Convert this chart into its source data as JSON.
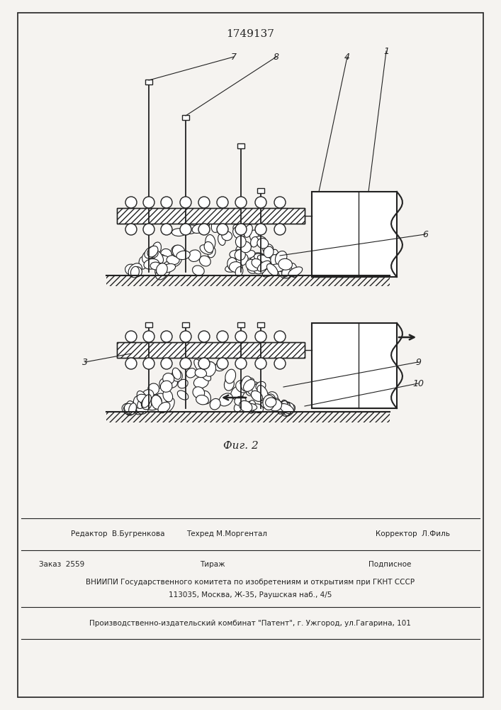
{
  "title": "1749137",
  "fig_label": "Фиг. 2",
  "bg_color": "#f5f3f0",
  "lc": "#222222",
  "footer_editor": "Редактор  В.Бугренкова",
  "footer_tech": "Техред М.Моргентал",
  "footer_corr": "Корректор  Л.Филь",
  "footer_order": "Заказ  2559",
  "footer_print": "Тираж",
  "footer_sub": "Подписное",
  "footer_vniip": "ВНИИПИ Государственного комитета по изобретениям и открытиям при ГКНТ СССР",
  "footer_addr": "113035, Москва, Ж-35, Раушская наб., 4/5",
  "footer_patent": "Производственно-издательский комбинат \"Патент\", г. Ужгород, ул.Гагарина, 101"
}
